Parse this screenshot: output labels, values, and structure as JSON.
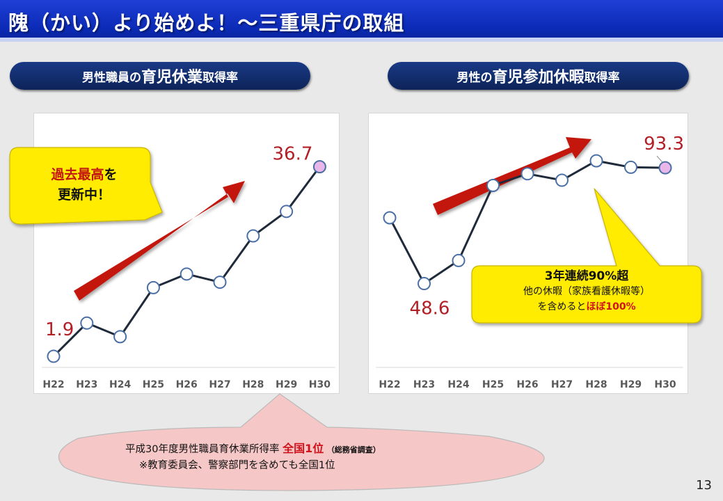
{
  "title": "隗（かい）より始めよ！～三重県庁の取組",
  "page_number": "13",
  "colors": {
    "header_blue": "#0d2aa8",
    "navy": "#0d2459",
    "arrow_red": "#c3150f",
    "line": "#1f2a3a",
    "label_red": "#b21f24",
    "callout_yellow": "#ffec00",
    "last_point": "#e8b6e8"
  },
  "chart_data": [
    {
      "type": "line",
      "title_parts": [
        "男性職員の",
        "育児休業",
        "取得率"
      ],
      "categories": [
        "H22",
        "H23",
        "H24",
        "H25",
        "H26",
        "H27",
        "H28",
        "H29",
        "H30"
      ],
      "values": [
        1.9,
        8.0,
        5.5,
        14.5,
        17.0,
        15.5,
        24.0,
        28.5,
        36.7
      ],
      "labels": {
        "first": "1.9",
        "last": "36.7"
      },
      "ylim": [
        0,
        40
      ],
      "grid": false
    },
    {
      "type": "line",
      "title_parts": [
        "男性の",
        "育児参加休暇",
        "取得率"
      ],
      "categories": [
        "H22",
        "H23",
        "H24",
        "H25",
        "H26",
        "H27",
        "H28",
        "H29",
        "H30"
      ],
      "values": [
        74.0,
        48.6,
        57.5,
        86.5,
        91.0,
        88.5,
        96.0,
        93.5,
        93.3
      ],
      "labels": {
        "min": "48.6",
        "last": "93.3"
      },
      "ylim": [
        20,
        110
      ],
      "grid": false
    }
  ],
  "callout_left": {
    "red": "過去最高",
    "rest": "を",
    "line2": "更新中！"
  },
  "callout_right": {
    "line1": "3年連続90%超",
    "line2": "他の休暇（家族看護休暇等）",
    "line3a": "を含めると",
    "line3b": "ほぼ100%"
  },
  "note": {
    "line1a": "平成30年度男性職員育休業所得率",
    "line1b": "全国1位",
    "line1c": "（総務省調査）",
    "line2": "※教育委員会、警察部門を含めても全国1位"
  }
}
